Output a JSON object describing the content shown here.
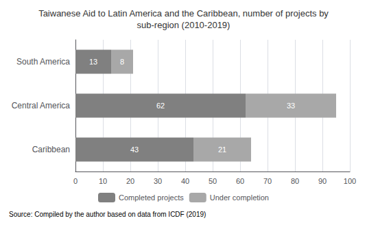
{
  "chart_data": {
    "type": "bar",
    "orientation": "horizontal",
    "stacked": true,
    "title": "Taiwanese Aid to Latin America and the Caribbean, number of projects by\nsub-region (2010-2019)",
    "categories": [
      "Caribbean",
      "Central America",
      "South America"
    ],
    "series": [
      {
        "name": "Completed projects",
        "color": "#808080",
        "values": [
          43,
          62,
          13
        ]
      },
      {
        "name": "Under completion",
        "color": "#a8a8a8",
        "values": [
          21,
          33,
          8
        ]
      }
    ],
    "xlim": [
      0,
      100
    ],
    "xticks": [
      0,
      10,
      20,
      30,
      40,
      50,
      60,
      70,
      80,
      90,
      100
    ],
    "grid": true,
    "data_labels": true,
    "legend": "bottom",
    "annotations": [
      "Source: Compiled by the author based on data from ICDF (2019)"
    ]
  }
}
